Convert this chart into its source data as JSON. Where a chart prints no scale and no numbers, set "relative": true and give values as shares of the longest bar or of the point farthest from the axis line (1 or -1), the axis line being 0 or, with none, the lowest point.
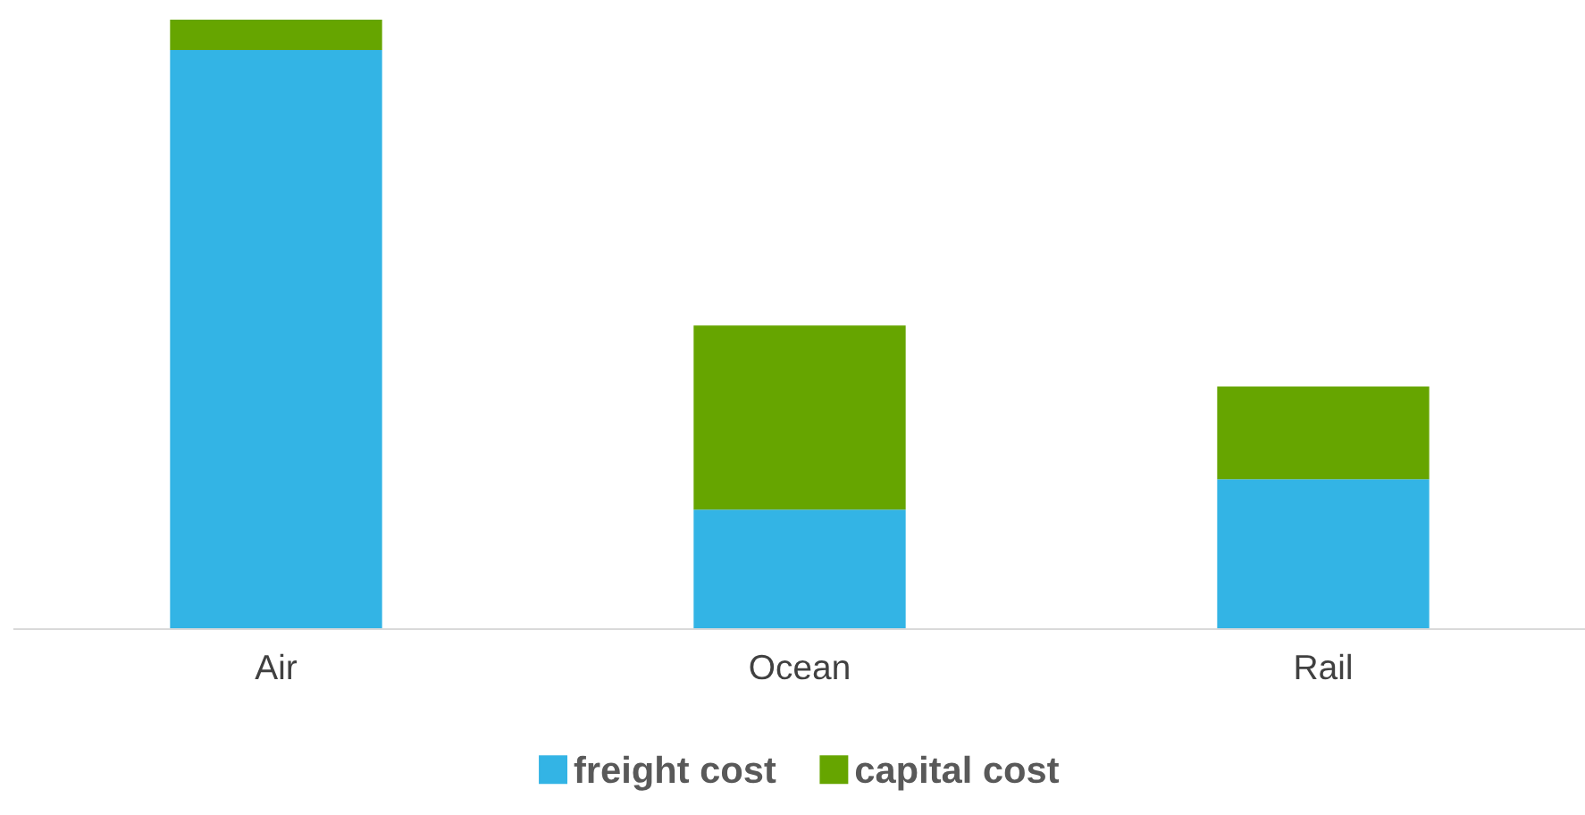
{
  "chart_data": {
    "type": "bar",
    "stacked": true,
    "relative": true,
    "categories": [
      "Air",
      "Ocean",
      "Rail"
    ],
    "series": [
      {
        "name": "freight cost",
        "color": "#33b4e5",
        "values": [
          0.95,
          0.196,
          0.246
        ]
      },
      {
        "name": "capital cost",
        "color": "#66a500",
        "values": [
          0.05,
          0.302,
          0.152
        ]
      }
    ],
    "legend": "bottom"
  }
}
